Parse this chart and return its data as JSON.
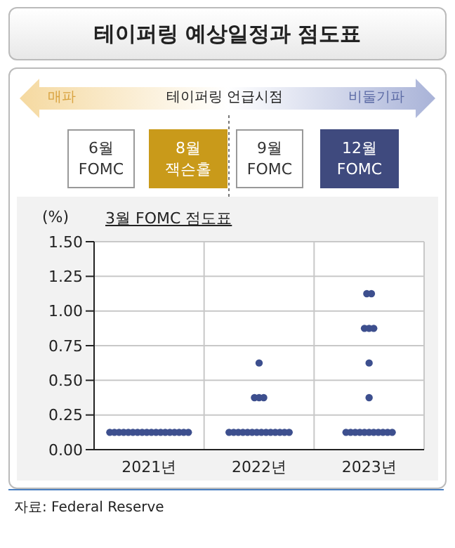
{
  "chart_data": {
    "type": "scatter",
    "title": "테이퍼링 예상일정과 점도표",
    "subtitle": "3월 FOMC 점도표",
    "ylabel": "(%)",
    "annotations": [
      "매파",
      "테이퍼링 언급시점",
      "비둘기파",
      "6월 FOMC",
      "8월 잭슨홀",
      "9월 FOMC",
      "12월 FOMC",
      "자료: Federal Reserve"
    ],
    "categories": [
      "2021년",
      "2022년",
      "2023년"
    ],
    "series": [
      {
        "color": "#3d4f8e",
        "x": [
          "2021년",
          "2021년",
          "2021년",
          "2021년",
          "2021년",
          "2021년",
          "2021년",
          "2021년",
          "2021년",
          "2021년",
          "2021년",
          "2021년",
          "2021년",
          "2021년",
          "2021년",
          "2021년",
          "2021년",
          "2021년",
          "2022년",
          "2022년",
          "2022년",
          "2022년",
          "2022년",
          "2022년",
          "2022년",
          "2022년",
          "2022년",
          "2022년",
          "2022년",
          "2022년",
          "2022년",
          "2022년",
          "2022년",
          "2022년",
          "2022년",
          "2022년",
          "2023년",
          "2023년",
          "2023년",
          "2023년",
          "2023년",
          "2023년",
          "2023년",
          "2023년",
          "2023년",
          "2023년",
          "2023년",
          "2023년",
          "2023년",
          "2023년",
          "2023년",
          "2023년",
          "2023년",
          "2023년"
        ],
        "values": [
          0.125,
          0.125,
          0.125,
          0.125,
          0.125,
          0.125,
          0.125,
          0.125,
          0.125,
          0.125,
          0.125,
          0.125,
          0.125,
          0.125,
          0.125,
          0.125,
          0.125,
          0.125,
          0.625,
          0.375,
          0.375,
          0.375,
          0.125,
          0.125,
          0.125,
          0.125,
          0.125,
          0.125,
          0.125,
          0.125,
          0.125,
          0.125,
          0.125,
          0.125,
          0.125,
          0.125,
          1.125,
          1.125,
          0.875,
          0.875,
          0.875,
          0.625,
          0.375,
          0.125,
          0.125,
          0.125,
          0.125,
          0.125,
          0.125,
          0.125,
          0.125,
          0.125,
          0.125,
          0.125
        ]
      }
    ],
    "ylim": [
      0,
      1.5
    ],
    "yticks": [
      {
        "value": 0,
        "label": "0.00"
      },
      {
        "value": 0.25,
        "label": "0.25"
      },
      {
        "value": 0.5,
        "label": "0.50"
      },
      {
        "value": 0.75,
        "label": "0.75"
      },
      {
        "value": 1,
        "label": "1.00"
      },
      {
        "value": 1.25,
        "label": "1.25"
      },
      {
        "value": 1.5,
        "label": "1.50"
      }
    ],
    "grid": true,
    "marker": "circle"
  }
}
